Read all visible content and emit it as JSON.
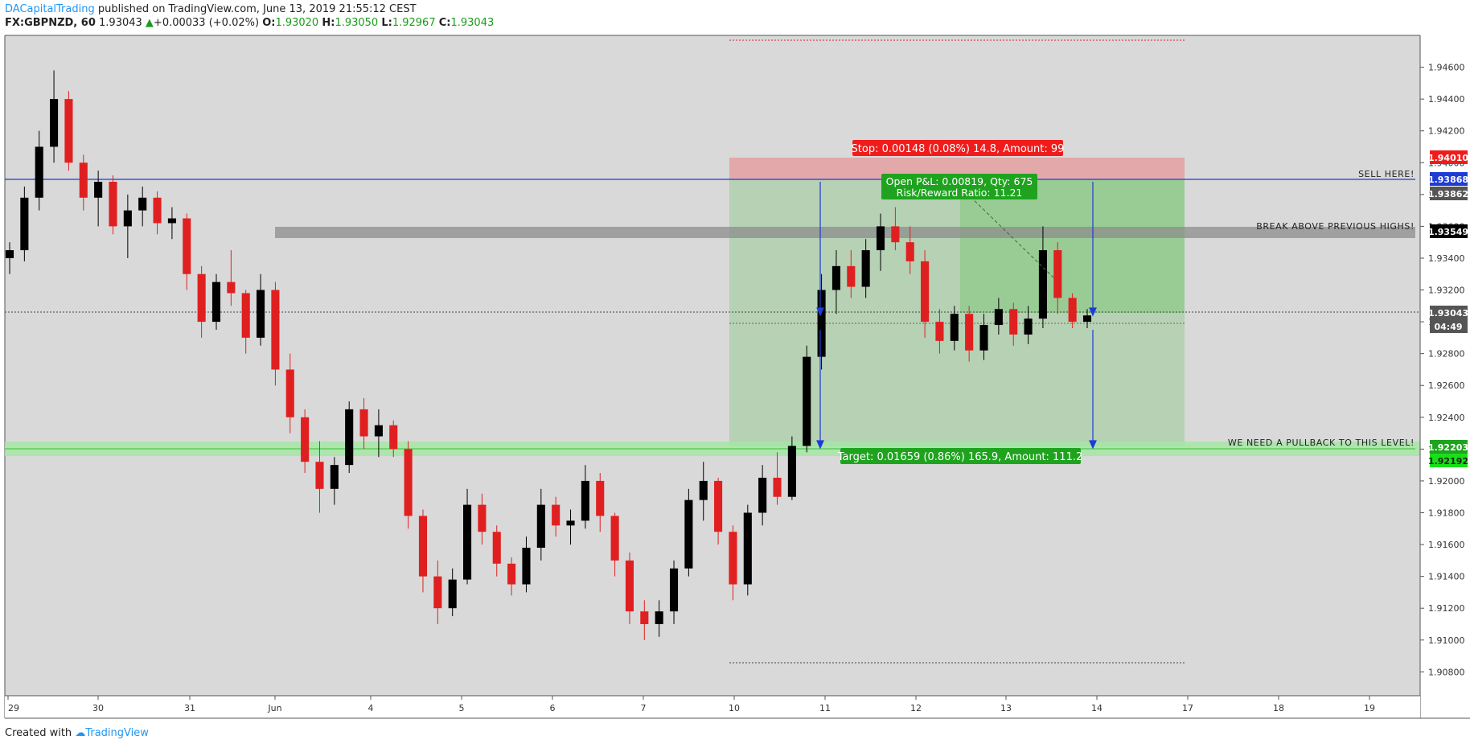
{
  "header": {
    "author": "DACapitalTrading",
    "published": "published on TradingView.com, June 13, 2019 21:55:12 CEST",
    "symbol": "FX:GBPNZD, 60",
    "last": "1.93043",
    "up_arrow": "▲",
    "change": "+0.00033 (+0.02%)",
    "o_label": "O:",
    "o": "1.93020",
    "h_label": "H:",
    "h": "1.93050",
    "l_label": "L:",
    "l": "1.92967",
    "c_label": "C:",
    "c": "1.93043"
  },
  "footer": {
    "created_with": "Created with",
    "brand": "TradingView",
    "logo_icon": "tradingview-logo-icon"
  },
  "colors": {
    "background": "#d9d9d9",
    "bull": "#000000",
    "bear": "#e02020",
    "stop_zone": "#e3a9aa",
    "target_zone": "#b6d1b4",
    "profit_zone": "#8ec98a",
    "sell_line": "#1f3bd6",
    "pullback_band": "#a4e6a4",
    "resistance_band": "#8c8c8c"
  },
  "annotations": {
    "stop_label": "Stop: 0.00148 (0.08%) 14.8, Amount: 99",
    "open_pl": "Open P&L: 0.00819, Qty: 675",
    "rr": "Risk/Reward Ratio: 11.21",
    "target_label": "Target: 0.01659 (0.86%) 165.9, Amount: 111.2",
    "sell_here": "SELL HERE!",
    "break_above": "BREAK ABOVE PREVIOUS HIGHS!",
    "pullback": "WE NEED A PULLBACK TO THIS LEVEL!"
  },
  "price_tags": {
    "stop": "1.94010",
    "sell": "1.93868",
    "entry": "1.93862",
    "break": "1.93549",
    "last": "1.93043",
    "countdown": "04:49",
    "pullback": "1.92203",
    "target": "1.92192"
  },
  "chart_data": {
    "type": "candlestick",
    "title": "",
    "xlabel": "",
    "ylabel": "",
    "ylim": [
      1.9065,
      1.948
    ],
    "y_ticks": [
      "1.94600",
      "1.94400",
      "1.94200",
      "1.94000",
      "1.93800",
      "1.93600",
      "1.93400",
      "1.93200",
      "1.93000",
      "1.92800",
      "1.92600",
      "1.92400",
      "1.92200",
      "1.92000",
      "1.91800",
      "1.91600",
      "1.91400",
      "1.91200",
      "1.91000",
      "1.90800"
    ],
    "x_ticks": [
      "29",
      "30",
      "31",
      "Jun",
      "4",
      "5",
      "6",
      "7",
      "10",
      "11",
      "12",
      "13",
      "14",
      "17",
      "18",
      "19"
    ],
    "grid": false,
    "ohlc": [
      [
        1.934,
        1.935,
        1.933,
        1.9345
      ],
      [
        1.9345,
        1.9385,
        1.9338,
        1.9378
      ],
      [
        1.9378,
        1.942,
        1.937,
        1.941
      ],
      [
        1.941,
        1.9458,
        1.94,
        1.944
      ],
      [
        1.944,
        1.9445,
        1.9395,
        1.94
      ],
      [
        1.94,
        1.9405,
        1.937,
        1.9378
      ],
      [
        1.9378,
        1.9395,
        1.936,
        1.9388
      ],
      [
        1.9388,
        1.9392,
        1.9355,
        1.936
      ],
      [
        1.936,
        1.938,
        1.934,
        1.937
      ],
      [
        1.937,
        1.9385,
        1.936,
        1.9378
      ],
      [
        1.9378,
        1.9382,
        1.9355,
        1.9362
      ],
      [
        1.9362,
        1.9372,
        1.9352,
        1.9365
      ],
      [
        1.9365,
        1.9368,
        1.932,
        1.933
      ],
      [
        1.933,
        1.9335,
        1.929,
        1.93
      ],
      [
        1.93,
        1.933,
        1.9295,
        1.9325
      ],
      [
        1.9325,
        1.9345,
        1.931,
        1.9318
      ],
      [
        1.9318,
        1.932,
        1.928,
        1.929
      ],
      [
        1.929,
        1.933,
        1.9285,
        1.932
      ],
      [
        1.932,
        1.9325,
        1.926,
        1.927
      ],
      [
        1.927,
        1.928,
        1.923,
        1.924
      ],
      [
        1.924,
        1.9245,
        1.9205,
        1.9212
      ],
      [
        1.9212,
        1.9225,
        1.918,
        1.9195
      ],
      [
        1.9195,
        1.9215,
        1.9185,
        1.921
      ],
      [
        1.921,
        1.925,
        1.9205,
        1.9245
      ],
      [
        1.9245,
        1.9252,
        1.922,
        1.9228
      ],
      [
        1.9228,
        1.9245,
        1.9215,
        1.9235
      ],
      [
        1.9235,
        1.9238,
        1.9215,
        1.922
      ],
      [
        1.922,
        1.9225,
        1.917,
        1.9178
      ],
      [
        1.9178,
        1.9182,
        1.913,
        1.914
      ],
      [
        1.914,
        1.915,
        1.911,
        1.912
      ],
      [
        1.912,
        1.9145,
        1.9115,
        1.9138
      ],
      [
        1.9138,
        1.9195,
        1.9135,
        1.9185
      ],
      [
        1.9185,
        1.9192,
        1.916,
        1.9168
      ],
      [
        1.9168,
        1.9172,
        1.914,
        1.9148
      ],
      [
        1.9148,
        1.9152,
        1.9128,
        1.9135
      ],
      [
        1.9135,
        1.9165,
        1.913,
        1.9158
      ],
      [
        1.9158,
        1.9195,
        1.915,
        1.9185
      ],
      [
        1.9185,
        1.919,
        1.9165,
        1.9172
      ],
      [
        1.9172,
        1.9182,
        1.916,
        1.9175
      ],
      [
        1.9175,
        1.921,
        1.917,
        1.92
      ],
      [
        1.92,
        1.9205,
        1.9168,
        1.9178
      ],
      [
        1.9178,
        1.918,
        1.914,
        1.915
      ],
      [
        1.915,
        1.9155,
        1.911,
        1.9118
      ],
      [
        1.9118,
        1.9125,
        1.91,
        1.911
      ],
      [
        1.911,
        1.9125,
        1.9102,
        1.9118
      ],
      [
        1.9118,
        1.915,
        1.911,
        1.9145
      ],
      [
        1.9145,
        1.9195,
        1.914,
        1.9188
      ],
      [
        1.9188,
        1.9212,
        1.9175,
        1.92
      ],
      [
        1.92,
        1.9202,
        1.916,
        1.9168
      ],
      [
        1.9168,
        1.9172,
        1.9125,
        1.9135
      ],
      [
        1.9135,
        1.9185,
        1.9128,
        1.918
      ],
      [
        1.918,
        1.921,
        1.9172,
        1.9202
      ],
      [
        1.9202,
        1.9218,
        1.9185,
        1.919
      ],
      [
        1.919,
        1.9228,
        1.9188,
        1.9222
      ],
      [
        1.9222,
        1.9285,
        1.9218,
        1.9278
      ],
      [
        1.9278,
        1.933,
        1.927,
        1.932
      ],
      [
        1.932,
        1.9345,
        1.9305,
        1.9335
      ],
      [
        1.9335,
        1.9345,
        1.9315,
        1.9322
      ],
      [
        1.9322,
        1.9352,
        1.9315,
        1.9345
      ],
      [
        1.9345,
        1.9368,
        1.9332,
        1.936
      ],
      [
        1.936,
        1.9372,
        1.9345,
        1.935
      ],
      [
        1.935,
        1.936,
        1.933,
        1.9338
      ],
      [
        1.9338,
        1.9345,
        1.929,
        1.93
      ],
      [
        1.93,
        1.9308,
        1.928,
        1.9288
      ],
      [
        1.9288,
        1.931,
        1.9282,
        1.9305
      ],
      [
        1.9305,
        1.931,
        1.9275,
        1.9282
      ],
      [
        1.9282,
        1.9305,
        1.9276,
        1.9298
      ],
      [
        1.9298,
        1.9315,
        1.9292,
        1.9308
      ],
      [
        1.9308,
        1.9312,
        1.9285,
        1.9292
      ],
      [
        1.9292,
        1.931,
        1.9286,
        1.9302
      ],
      [
        1.9302,
        1.936,
        1.9296,
        1.9345
      ],
      [
        1.9345,
        1.935,
        1.9305,
        1.9315
      ],
      [
        1.9315,
        1.9318,
        1.9296,
        1.93
      ],
      [
        1.93,
        1.9308,
        1.9296,
        1.9304
      ]
    ]
  }
}
